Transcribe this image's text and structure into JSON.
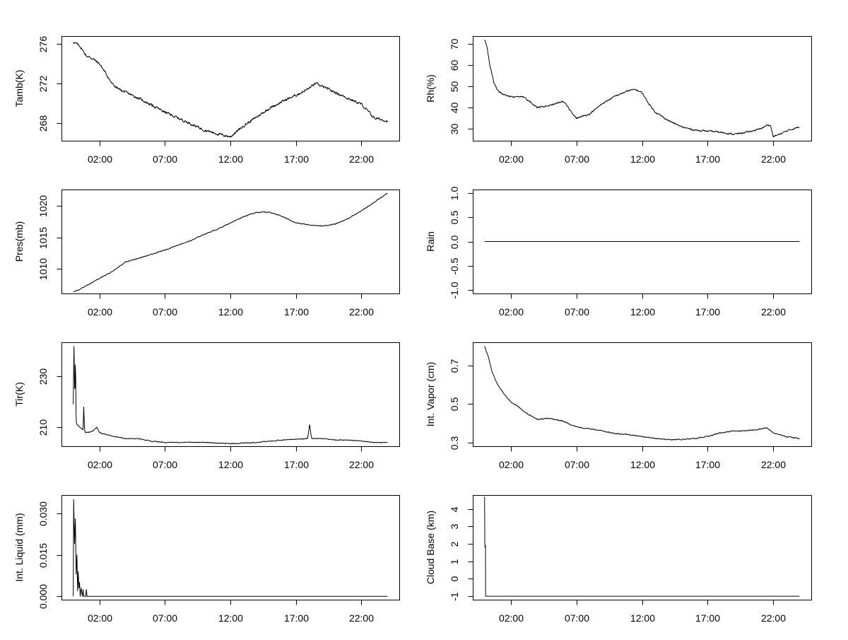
{
  "figure": {
    "background": "#ffffff",
    "line_color": "#000000",
    "x_ticks": [
      "02:00",
      "07:00",
      "12:00",
      "17:00",
      "22:00"
    ],
    "x_tick_hours": [
      2,
      7,
      12,
      17,
      22
    ]
  },
  "chart_data": [
    {
      "id": "tamb",
      "type": "line",
      "ylabel": "Tamb(K)",
      "xlim": [
        -0.9,
        24.9
      ],
      "ylim": [
        266.2,
        276.8
      ],
      "yticks": [
        268,
        272,
        276
      ],
      "ytick_labels": [
        "268",
        "272",
        "276"
      ],
      "x": [
        0,
        0.5,
        1,
        1.5,
        2,
        2.5,
        3,
        3.5,
        4,
        5,
        6,
        7,
        8,
        9,
        10,
        11,
        12,
        13,
        14,
        15,
        16,
        17,
        18,
        18.5,
        19,
        20,
        21,
        22,
        23,
        24
      ],
      "y": [
        276.2,
        275.8,
        274.8,
        274.5,
        274.0,
        273.0,
        271.9,
        271.4,
        271.1,
        270.5,
        269.8,
        269.1,
        268.5,
        267.9,
        267.3,
        266.9,
        266.6,
        267.7,
        268.6,
        269.5,
        270.2,
        270.8,
        271.5,
        272.0,
        271.7,
        271.1,
        270.5,
        269.9,
        268.5,
        268.2
      ],
      "noise": 0.22
    },
    {
      "id": "rh",
      "type": "line",
      "ylabel": "Rh(%)",
      "xlim": [
        -0.9,
        24.9
      ],
      "ylim": [
        24.5,
        73.5
      ],
      "yticks": [
        30,
        40,
        50,
        60,
        70
      ],
      "ytick_labels": [
        "30",
        "40",
        "50",
        "60",
        "70"
      ],
      "x": [
        0,
        0.2,
        0.4,
        0.7,
        1,
        1.5,
        2,
        3,
        4,
        5,
        6,
        7,
        8,
        9,
        10,
        11,
        11.5,
        12,
        12.5,
        13,
        14,
        15,
        16,
        17,
        18,
        19,
        20,
        21,
        21.6,
        21.8,
        22,
        22.5,
        23,
        24
      ],
      "y": [
        72,
        68,
        60,
        52,
        48,
        46,
        45,
        45,
        40,
        41,
        43,
        35,
        37,
        42,
        45.5,
        48,
        48.5,
        47,
        42,
        38,
        34,
        31,
        29.5,
        29,
        28.5,
        27.5,
        28.5,
        30,
        32,
        31.5,
        26.5,
        27.5,
        29,
        31
      ],
      "noise": 0.6
    },
    {
      "id": "rain",
      "type": "line",
      "ylabel": "Rain",
      "xlim": [
        -0.9,
        24.9
      ],
      "ylim": [
        -1.08,
        1.08
      ],
      "yticks": [
        -1,
        -0.5,
        0,
        0.5,
        1
      ],
      "ytick_labels": [
        "-1.0",
        "-0.5",
        "0.0",
        "0.5",
        "1.0"
      ],
      "x": [
        0,
        24
      ],
      "y": [
        0,
        0
      ],
      "noise": 0
    },
    {
      "id": "pres",
      "type": "line",
      "ylabel": "Pres(mb)",
      "xlim": [
        -0.9,
        24.9
      ],
      "ylim": [
        1006.1,
        1022.6
      ],
      "yticks": [
        1010,
        1015,
        1020
      ],
      "ytick_labels": [
        "1010",
        "1015",
        "1020"
      ],
      "x": [
        0,
        1,
        2,
        3,
        4,
        5,
        6,
        7,
        8,
        9,
        10,
        11,
        12,
        13,
        14,
        15,
        16,
        17,
        18,
        19,
        20,
        21,
        22,
        23,
        24
      ],
      "y": [
        1006.3,
        1007.3,
        1008.5,
        1009.6,
        1011.1,
        1011.7,
        1012.3,
        1013.0,
        1013.8,
        1014.5,
        1015.5,
        1016.3,
        1017.3,
        1018.3,
        1019.0,
        1019.0,
        1018.3,
        1017.3,
        1017.0,
        1016.8,
        1017.1,
        1018.0,
        1019.2,
        1020.6,
        1022.0
      ],
      "noise": 0.12
    },
    {
      "id": "tir",
      "type": "line",
      "ylabel": "Tir(K)",
      "xlim": [
        -0.9,
        24.9
      ],
      "ylim": [
        202.5,
        243.5
      ],
      "yticks": [
        210,
        230
      ],
      "ytick_labels": [
        "210",
        "230"
      ],
      "x": [
        0,
        0.05,
        0.12,
        0.17,
        0.22,
        0.3,
        0.5,
        0.75,
        0.8,
        0.86,
        0.92,
        1.2,
        1.5,
        1.8,
        2.0,
        2.2,
        3,
        4,
        5,
        6,
        7,
        8,
        10,
        12,
        14,
        16,
        17.9,
        18.05,
        18.2,
        18.4,
        19,
        20,
        21,
        22,
        23,
        24
      ],
      "y": [
        219,
        243,
        221,
        238,
        212,
        211,
        210,
        209,
        218,
        209,
        208,
        208,
        208.5,
        210,
        208,
        207.5,
        206.5,
        205.5,
        205.5,
        204.5,
        204,
        204,
        204,
        203.5,
        204,
        205,
        205.5,
        211,
        205.5,
        205.5,
        205.5,
        205,
        205,
        204.5,
        204,
        204
      ],
      "noise": 0.28
    },
    {
      "id": "vapor",
      "type": "line",
      "ylabel": "Int. Vapor (cm)",
      "xlim": [
        -0.9,
        24.9
      ],
      "ylim": [
        0.28,
        0.82
      ],
      "yticks": [
        0.3,
        0.5,
        0.7
      ],
      "ytick_labels": [
        "0.3",
        "0.5",
        "0.7"
      ],
      "x": [
        0,
        0.3,
        0.6,
        1,
        1.5,
        2,
        2.5,
        3,
        4,
        5,
        6,
        7,
        8,
        9,
        10,
        11,
        12,
        13,
        14,
        15,
        16,
        17,
        18,
        19,
        20,
        21,
        21.5,
        22,
        23,
        24
      ],
      "y": [
        0.8,
        0.74,
        0.66,
        0.6,
        0.55,
        0.51,
        0.49,
        0.46,
        0.42,
        0.425,
        0.41,
        0.38,
        0.37,
        0.36,
        0.345,
        0.34,
        0.33,
        0.32,
        0.315,
        0.315,
        0.32,
        0.33,
        0.35,
        0.36,
        0.36,
        0.37,
        0.375,
        0.35,
        0.33,
        0.32
      ],
      "noise": 0.0045
    },
    {
      "id": "liquid",
      "type": "line",
      "ylabel": "Int. Liquid (mm)",
      "xlim": [
        -0.9,
        24.9
      ],
      "ylim": [
        -0.0012,
        0.0366
      ],
      "yticks": [
        0,
        0.015,
        0.03
      ],
      "ytick_labels": [
        "0.000",
        "0.015",
        "0.030"
      ],
      "x": [
        0,
        0.03,
        0.1,
        0.16,
        0.22,
        0.28,
        0.33,
        0.38,
        0.43,
        0.48,
        0.53,
        0.6,
        0.7,
        0.75,
        0.8,
        0.85,
        0.95,
        1.0,
        1.05,
        1.1,
        1.2,
        24
      ],
      "y": [
        0.0,
        0.035,
        0.019,
        0.028,
        0.008,
        0.015,
        0.002,
        0.009,
        0.003,
        0.005,
        0.0,
        0.003,
        0.0,
        0.0025,
        0.0,
        0.0,
        0.0,
        0.0025,
        0.0,
        0.0,
        0.0,
        0.0
      ],
      "noise": 0
    },
    {
      "id": "cloudbase",
      "type": "line",
      "ylabel": "Cloud Base (km)",
      "xlim": [
        -0.9,
        24.9
      ],
      "ylim": [
        -1.2,
        4.8
      ],
      "yticks": [
        -1,
        0,
        1,
        2,
        3,
        4
      ],
      "ytick_labels": [
        "-1",
        "0",
        "1",
        "2",
        "3",
        "4"
      ],
      "x": [
        0,
        0.02,
        0.04,
        0.07,
        0.08,
        24
      ],
      "y": [
        4.7,
        2.0,
        1.8,
        1.9,
        -1,
        -1
      ],
      "noise": 0
    }
  ]
}
